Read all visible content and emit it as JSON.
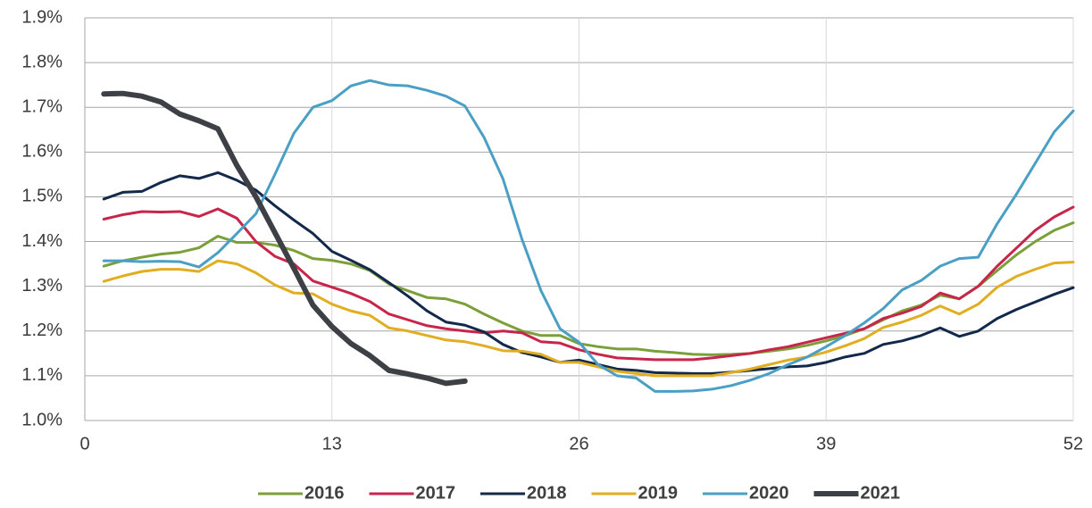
{
  "chart_data": {
    "type": "line",
    "x": [
      1,
      2,
      3,
      4,
      5,
      6,
      7,
      8,
      9,
      10,
      11,
      12,
      13,
      14,
      15,
      16,
      17,
      18,
      19,
      20,
      21,
      22,
      23,
      24,
      25,
      26,
      27,
      28,
      29,
      30,
      31,
      32,
      33,
      34,
      35,
      36,
      37,
      38,
      39,
      40,
      41,
      42,
      43,
      44,
      45,
      46,
      47,
      48,
      49,
      50,
      51,
      52
    ],
    "xlim": [
      0,
      52
    ],
    "xticks": [
      0,
      13,
      26,
      39,
      52
    ],
    "ylim": [
      1.0,
      1.9
    ],
    "yticks": [
      {
        "value": 1.0,
        "label": "1.0%"
      },
      {
        "value": 1.1,
        "label": "1.1%"
      },
      {
        "value": 1.2,
        "label": "1.2%"
      },
      {
        "value": 1.3,
        "label": "1.3%"
      },
      {
        "value": 1.4,
        "label": "1.4%"
      },
      {
        "value": 1.5,
        "label": "1.5%"
      },
      {
        "value": 1.6,
        "label": "1.6%"
      },
      {
        "value": 1.7,
        "label": "1.7%"
      },
      {
        "value": 1.8,
        "label": "1.8%"
      },
      {
        "value": 1.9,
        "label": "1.9%"
      }
    ],
    "grid": true,
    "legend": "bottom",
    "series": [
      {
        "name": "2016",
        "color": "#7ba03a",
        "values": [
          1.345,
          1.357,
          1.365,
          1.372,
          1.376,
          1.386,
          1.412,
          1.398,
          1.398,
          1.392,
          1.38,
          1.362,
          1.358,
          1.35,
          1.335,
          1.305,
          1.29,
          1.275,
          1.272,
          1.26,
          1.238,
          1.218,
          1.2,
          1.19,
          1.19,
          1.172,
          1.165,
          1.16,
          1.16,
          1.155,
          1.152,
          1.148,
          1.147,
          1.148,
          1.15,
          1.155,
          1.16,
          1.168,
          1.178,
          1.19,
          1.205,
          1.225,
          1.245,
          1.258,
          1.28,
          1.272,
          1.3,
          1.335,
          1.37,
          1.4,
          1.425,
          1.442
        ]
      },
      {
        "name": "2017",
        "color": "#c8254a",
        "values": [
          1.45,
          1.46,
          1.467,
          1.466,
          1.467,
          1.456,
          1.473,
          1.452,
          1.4,
          1.367,
          1.35,
          1.312,
          1.298,
          1.284,
          1.266,
          1.238,
          1.225,
          1.212,
          1.205,
          1.2,
          1.196,
          1.2,
          1.196,
          1.176,
          1.173,
          1.158,
          1.148,
          1.14,
          1.138,
          1.136,
          1.136,
          1.136,
          1.14,
          1.145,
          1.15,
          1.158,
          1.165,
          1.175,
          1.185,
          1.195,
          1.205,
          1.228,
          1.24,
          1.255,
          1.285,
          1.272,
          1.3,
          1.345,
          1.385,
          1.425,
          1.455,
          1.477
        ]
      },
      {
        "name": "2018",
        "color": "#13294b",
        "values": [
          1.495,
          1.51,
          1.512,
          1.532,
          1.547,
          1.541,
          1.554,
          1.537,
          1.515,
          1.48,
          1.448,
          1.418,
          1.378,
          1.358,
          1.337,
          1.308,
          1.278,
          1.245,
          1.22,
          1.213,
          1.198,
          1.17,
          1.152,
          1.142,
          1.13,
          1.135,
          1.125,
          1.115,
          1.112,
          1.107,
          1.106,
          1.105,
          1.105,
          1.108,
          1.112,
          1.116,
          1.12,
          1.122,
          1.13,
          1.142,
          1.15,
          1.17,
          1.178,
          1.19,
          1.207,
          1.188,
          1.2,
          1.228,
          1.248,
          1.265,
          1.282,
          1.297
        ]
      },
      {
        "name": "2019",
        "color": "#e1ad21",
        "values": [
          1.311,
          1.323,
          1.333,
          1.338,
          1.338,
          1.333,
          1.357,
          1.35,
          1.33,
          1.303,
          1.285,
          1.283,
          1.26,
          1.245,
          1.235,
          1.207,
          1.2,
          1.19,
          1.18,
          1.176,
          1.167,
          1.156,
          1.155,
          1.148,
          1.13,
          1.13,
          1.12,
          1.11,
          1.105,
          1.1,
          1.1,
          1.1,
          1.1,
          1.107,
          1.115,
          1.125,
          1.135,
          1.142,
          1.153,
          1.167,
          1.183,
          1.208,
          1.22,
          1.235,
          1.256,
          1.238,
          1.26,
          1.298,
          1.322,
          1.338,
          1.352,
          1.354
        ]
      },
      {
        "name": "2020",
        "color": "#4a9fc4",
        "values": [
          1.357,
          1.357,
          1.355,
          1.356,
          1.355,
          1.343,
          1.375,
          1.418,
          1.462,
          1.55,
          1.642,
          1.7,
          1.715,
          1.748,
          1.76,
          1.75,
          1.748,
          1.738,
          1.725,
          1.703,
          1.633,
          1.54,
          1.405,
          1.29,
          1.205,
          1.175,
          1.125,
          1.1,
          1.095,
          1.065,
          1.065,
          1.066,
          1.07,
          1.078,
          1.09,
          1.105,
          1.125,
          1.142,
          1.165,
          1.19,
          1.218,
          1.25,
          1.292,
          1.313,
          1.345,
          1.362,
          1.365,
          1.44,
          1.505,
          1.575,
          1.645,
          1.692
        ]
      },
      {
        "name": "2021",
        "color": "#3d4045",
        "values": [
          1.73,
          1.731,
          1.725,
          1.712,
          1.685,
          1.67,
          1.652,
          1.57,
          1.5,
          1.42,
          1.34,
          1.258,
          1.21,
          1.172,
          1.145,
          1.112,
          1.104,
          1.095,
          1.083,
          1.088,
          null,
          null,
          null,
          null,
          null,
          null,
          null,
          null,
          null,
          null,
          null,
          null,
          null,
          null,
          null,
          null,
          null,
          null,
          null,
          null,
          null,
          null,
          null,
          null,
          null,
          null,
          null,
          null,
          null,
          null,
          null,
          null
        ]
      }
    ]
  }
}
